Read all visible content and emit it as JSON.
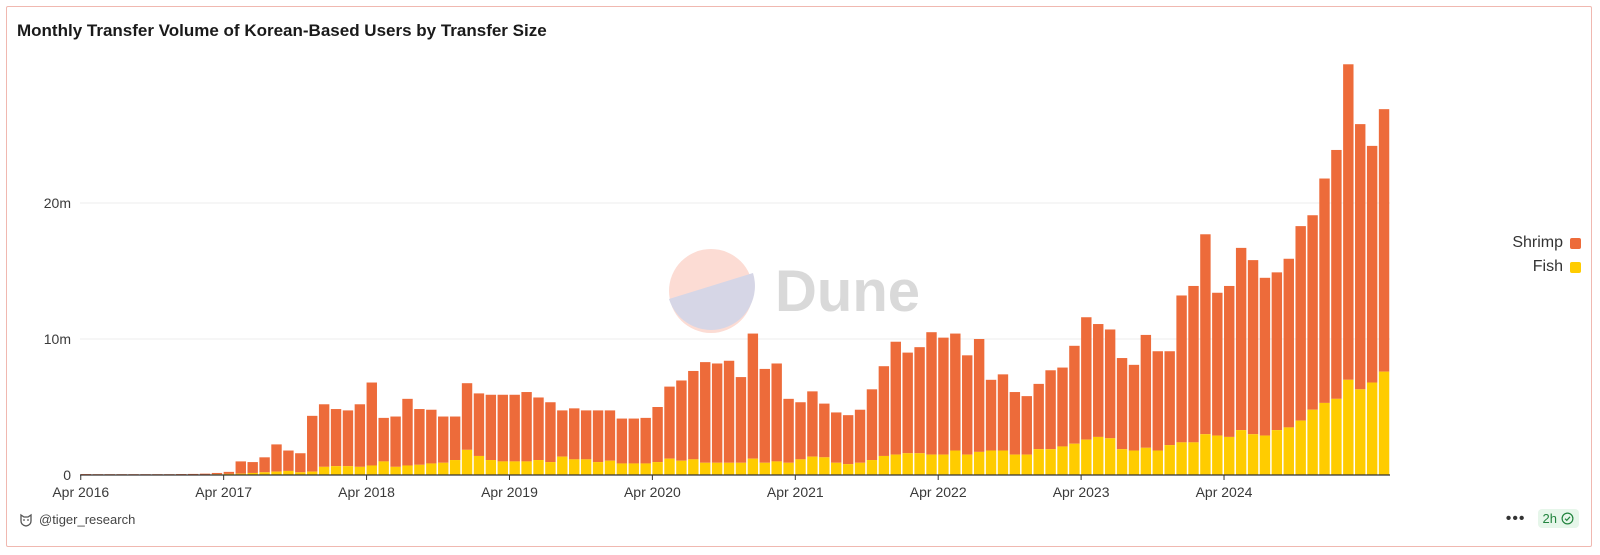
{
  "header": {
    "title": "Monthly Transfer Volume of Korean-Based Users by Transfer Size"
  },
  "watermark": {
    "text": "Dune"
  },
  "footer": {
    "author": "@tiger_research",
    "refresh_label": "2h",
    "more_label": "•••"
  },
  "colors": {
    "shrimp": "#ed6b3a",
    "fish": "#ffcc00",
    "grid": "#ececec"
  },
  "chart_data": {
    "type": "bar",
    "stacked": true,
    "title": "Monthly Transfer Volume of Korean-Based Users by Transfer Size",
    "xlabel": "",
    "ylabel": "",
    "ylim": [
      0,
      30000000
    ],
    "y_ticks": [
      {
        "value": 0,
        "label": "0"
      },
      {
        "value": 10000000,
        "label": "10m"
      },
      {
        "value": 20000000,
        "label": "20m"
      }
    ],
    "x_ticks": [
      "Apr 2016",
      "Apr 2017",
      "Apr 2018",
      "Apr 2019",
      "Apr 2020",
      "Apr 2021",
      "Apr 2022",
      "Apr 2023",
      "Apr 2024"
    ],
    "x_tick_indices": [
      0,
      12,
      24,
      36,
      48,
      60,
      72,
      84,
      96
    ],
    "first_month": "2016-04",
    "legend_position": "right",
    "grid": true,
    "series": [
      {
        "name": "Fish",
        "color": "#ffcc00",
        "values": [
          0.01,
          0.01,
          0.01,
          0.01,
          0.01,
          0.01,
          0.01,
          0.01,
          0.02,
          0.02,
          0.02,
          0.05,
          0.08,
          0.1,
          0.15,
          0.2,
          0.25,
          0.3,
          0.2,
          0.25,
          0.6,
          0.65,
          0.65,
          0.6,
          0.7,
          1.0,
          0.6,
          0.7,
          0.75,
          0.85,
          0.9,
          1.1,
          1.85,
          1.4,
          1.1,
          1.0,
          1.0,
          1.0,
          1.1,
          0.95,
          1.35,
          1.15,
          1.15,
          0.95,
          1.05,
          0.85,
          0.85,
          0.85,
          0.95,
          1.2,
          1.05,
          1.15,
          0.9,
          0.9,
          0.9,
          0.9,
          1.2,
          0.9,
          1.0,
          0.9,
          1.15,
          1.35,
          1.3,
          0.9,
          0.8,
          0.9,
          1.1,
          1.4,
          1.5,
          1.6,
          1.6,
          1.5,
          1.5,
          1.8,
          1.5,
          1.7,
          1.8,
          1.8,
          1.5,
          1.5,
          1.9,
          1.9,
          2.1,
          2.3,
          2.6,
          2.8,
          2.7,
          1.9,
          1.8,
          2.0,
          1.8,
          2.2,
          2.4,
          2.4,
          3.0,
          2.9,
          2.8,
          3.3,
          3.0,
          2.9,
          3.3,
          3.5,
          4.0,
          4.8,
          5.3,
          5.6,
          7.0,
          6.3,
          6.8,
          7.6
        ]
      },
      {
        "name": "Shrimp",
        "color": "#ed6b3a",
        "values": [
          0.06,
          0.05,
          0.05,
          0.05,
          0.05,
          0.05,
          0.05,
          0.05,
          0.05,
          0.06,
          0.08,
          0.1,
          0.15,
          0.9,
          0.8,
          1.1,
          2.0,
          1.5,
          1.4,
          4.1,
          4.6,
          4.2,
          4.1,
          4.6,
          6.1,
          3.2,
          3.7,
          4.9,
          4.1,
          3.95,
          3.4,
          3.2,
          4.9,
          4.6,
          4.8,
          4.9,
          4.9,
          5.1,
          4.6,
          4.4,
          3.4,
          3.75,
          3.6,
          3.8,
          3.7,
          3.3,
          3.3,
          3.35,
          4.05,
          5.3,
          5.9,
          6.5,
          7.4,
          7.3,
          7.5,
          6.3,
          9.2,
          6.9,
          7.2,
          4.7,
          4.2,
          4.8,
          3.95,
          3.7,
          3.6,
          3.9,
          5.2,
          6.6,
          8.3,
          7.4,
          7.8,
          9.0,
          8.6,
          8.6,
          7.3,
          8.3,
          5.2,
          5.6,
          4.6,
          4.3,
          4.8,
          5.8,
          5.8,
          7.2,
          9.0,
          8.3,
          8.0,
          6.7,
          6.3,
          8.3,
          7.3,
          6.9,
          10.8,
          11.5,
          14.7,
          10.5,
          11.1,
          13.4,
          12.8,
          11.6,
          11.6,
          12.4,
          14.3,
          14.3,
          16.5,
          18.3,
          23.2,
          19.5,
          17.4,
          19.3
        ]
      }
    ]
  }
}
